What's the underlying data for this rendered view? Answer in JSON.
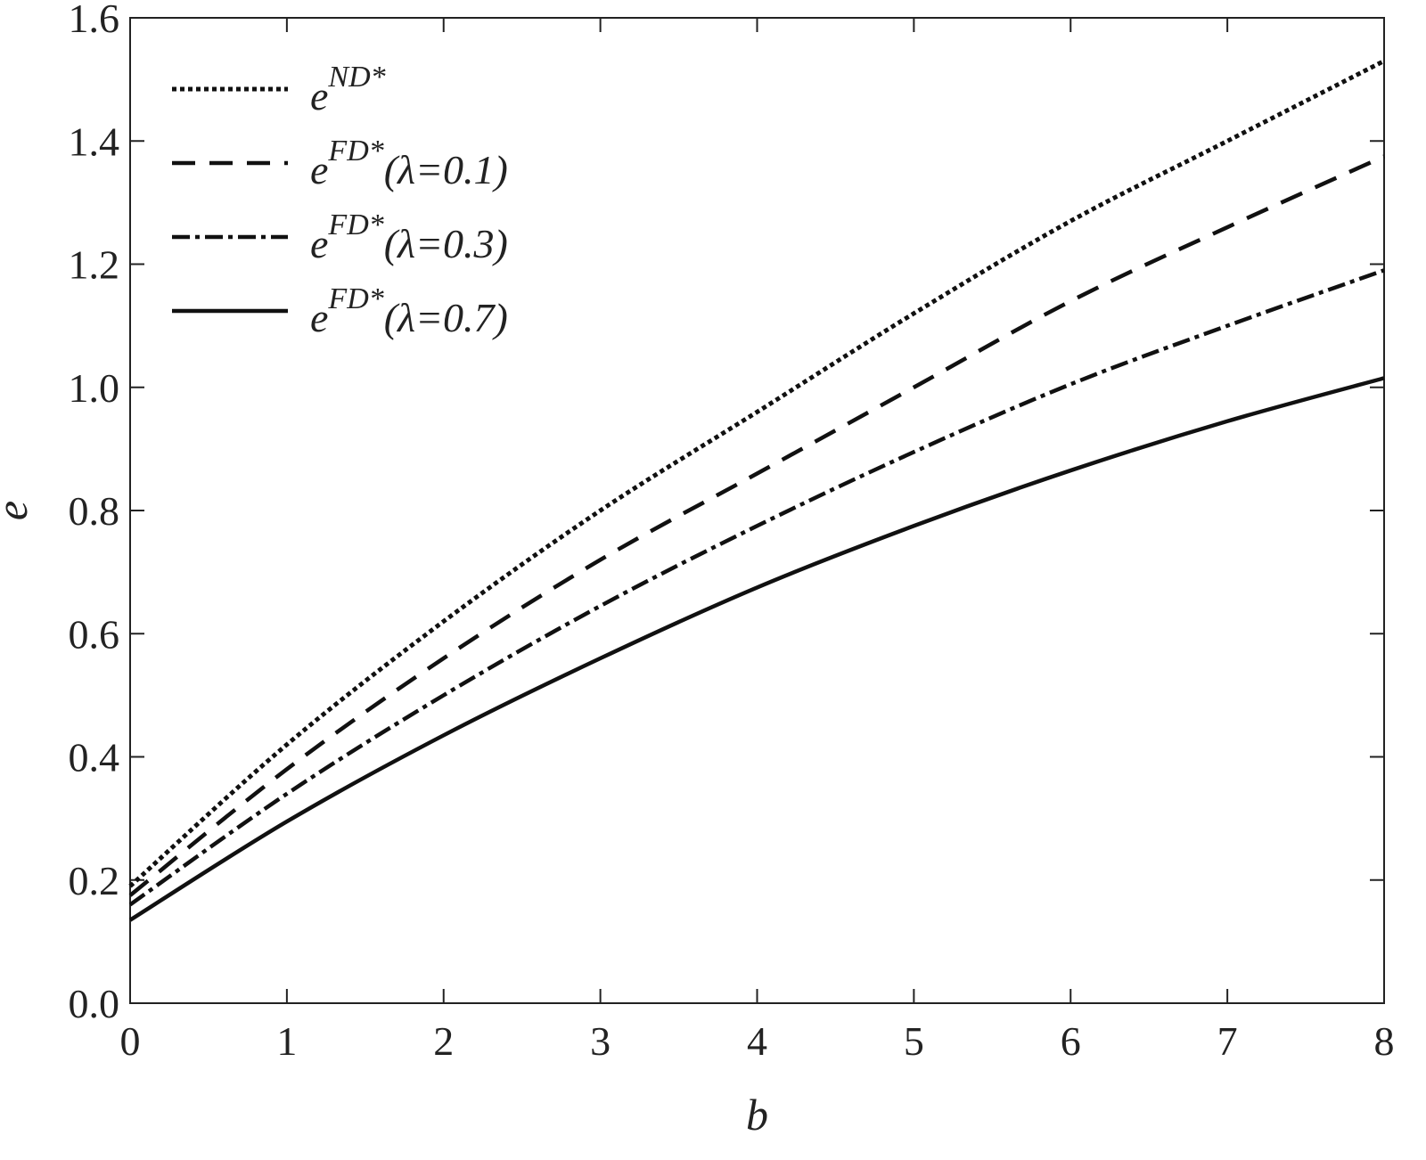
{
  "chart_data": {
    "type": "line",
    "xlabel": "b",
    "ylabel": "e",
    "xlim": [
      0,
      8
    ],
    "ylim": [
      0,
      1.6
    ],
    "xticks": [
      "0",
      "1",
      "2",
      "3",
      "4",
      "5",
      "6",
      "7",
      "8"
    ],
    "yticks": [
      "0.0",
      "0.2",
      "0.4",
      "0.6",
      "0.8",
      "1.0",
      "1.2",
      "1.4",
      "1.6"
    ],
    "grid": false,
    "legend_position": "top-left",
    "x": [
      0,
      1,
      2,
      3,
      4,
      5,
      6,
      7,
      8
    ],
    "series": [
      {
        "name": "e^{ND*}",
        "legend_base": "e",
        "legend_sup": "ND*",
        "legend_suffix": "",
        "style": "dotted",
        "values": [
          0.19,
          0.42,
          0.62,
          0.8,
          0.96,
          1.12,
          1.27,
          1.4,
          1.53
        ]
      },
      {
        "name": "e^{FD*}(λ=0.1)",
        "legend_base": "e",
        "legend_sup": "FD*",
        "legend_suffix": "(λ=0.1)",
        "style": "dashed",
        "values": [
          0.175,
          0.38,
          0.56,
          0.72,
          0.86,
          1.0,
          1.14,
          1.26,
          1.375
        ]
      },
      {
        "name": "e^{FD*}(λ=0.3)",
        "legend_base": "e",
        "legend_sup": "FD*",
        "legend_suffix": "(λ=0.3)",
        "style": "dashdot",
        "values": [
          0.16,
          0.34,
          0.5,
          0.645,
          0.775,
          0.895,
          1.005,
          1.1,
          1.19
        ]
      },
      {
        "name": "e^{FD*}(λ=0.7)",
        "legend_base": "e",
        "legend_sup": "FD*",
        "legend_suffix": "(λ=0.7)",
        "style": "solid",
        "values": [
          0.135,
          0.295,
          0.435,
          0.56,
          0.675,
          0.775,
          0.865,
          0.945,
          1.015
        ]
      }
    ]
  }
}
